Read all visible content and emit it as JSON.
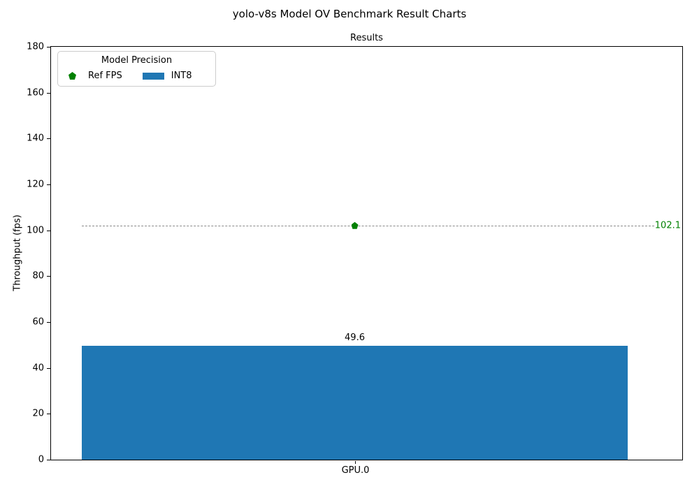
{
  "figure": {
    "title": "yolo-v8s Model OV Benchmark Result Charts",
    "axes_title": "Results",
    "ylabel": "Throughput (fps)"
  },
  "legend": {
    "title": "Model Precision",
    "items": [
      {
        "label": "Ref FPS",
        "marker": "pentagon-icon",
        "color": "#008000"
      },
      {
        "label": "INT8",
        "marker": "bar-swatch",
        "color": "#1f77b4"
      }
    ]
  },
  "chart_data": {
    "type": "bar",
    "title": "Results",
    "suptitle": "yolo-v8s Model OV Benchmark Result Charts",
    "xlabel": "",
    "ylabel": "Throughput (fps)",
    "categories": [
      "GPU.0"
    ],
    "series": [
      {
        "name": "INT8",
        "values": [
          49.6
        ],
        "color": "#1f77b4"
      }
    ],
    "bar_labels": [
      "49.6"
    ],
    "reference_line": {
      "name": "Ref FPS",
      "value": 102.1,
      "label": "102.1",
      "marker": "pentagon",
      "marker_color": "#008000",
      "label_color": "#008000",
      "line_color": "#8a8a8a",
      "line_style": "dashed"
    },
    "ylim": [
      0,
      180
    ],
    "yticks": [
      0,
      20,
      40,
      60,
      80,
      100,
      120,
      140,
      160,
      180
    ],
    "grid": false,
    "legend_title": "Model Precision",
    "legend_position": "upper left"
  }
}
